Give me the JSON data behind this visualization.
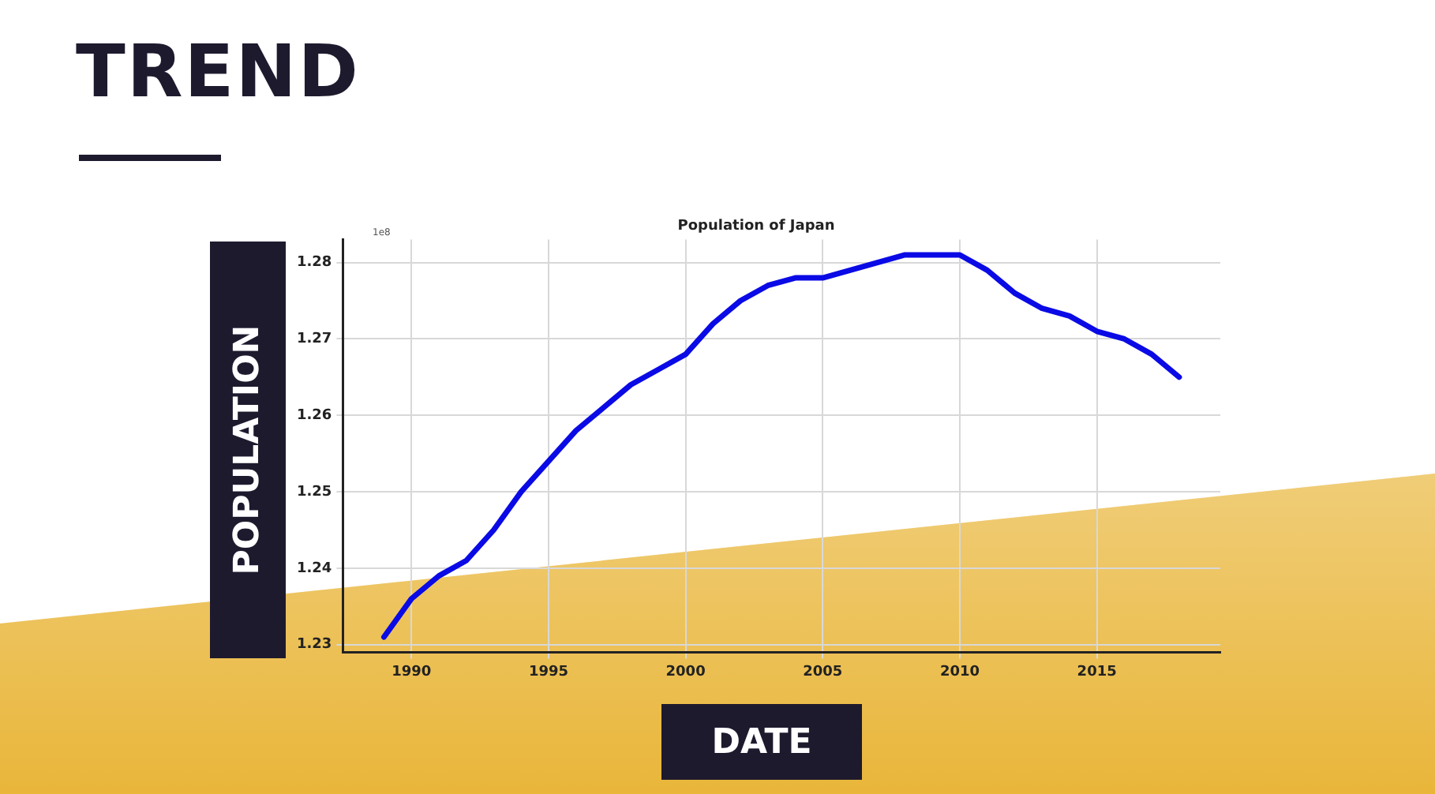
{
  "chart_data": {
    "type": "line",
    "title": "Population of Japan",
    "xlabel": "DATE",
    "ylabel": "POPULATION",
    "annotations": [
      "TREND",
      "1e8"
    ],
    "x": [
      1989,
      1990,
      1991,
      1992,
      1993,
      1994,
      1995,
      1996,
      1997,
      1998,
      1999,
      2000,
      2001,
      2002,
      2003,
      2004,
      2005,
      2006,
      2007,
      2008,
      2009,
      2010,
      2011,
      2012,
      2013,
      2014,
      2015,
      2016,
      2017,
      2018
    ],
    "series": [
      {
        "color": "#0a0ae6",
        "values": [
          1.231,
          1.236,
          1.239,
          1.241,
          1.245,
          1.25,
          1.254,
          1.258,
          1.261,
          1.264,
          1.266,
          1.268,
          1.272,
          1.275,
          1.277,
          1.278,
          1.278,
          1.279,
          1.28,
          1.281,
          1.281,
          1.281,
          1.279,
          1.276,
          1.274,
          1.273,
          1.271,
          1.27,
          1.268,
          1.265
        ]
      }
    ],
    "xlim": [
      1987.5,
      2019.5
    ],
    "xticks": [
      1990,
      1995,
      2000,
      2005,
      2010,
      2015
    ],
    "ylim": [
      1.229,
      1.283
    ],
    "yticks": [
      1.23,
      1.24,
      1.25,
      1.26,
      1.27,
      1.28
    ],
    "grid": true,
    "legend": false,
    "marker": "none",
    "line_style": "solid"
  }
}
